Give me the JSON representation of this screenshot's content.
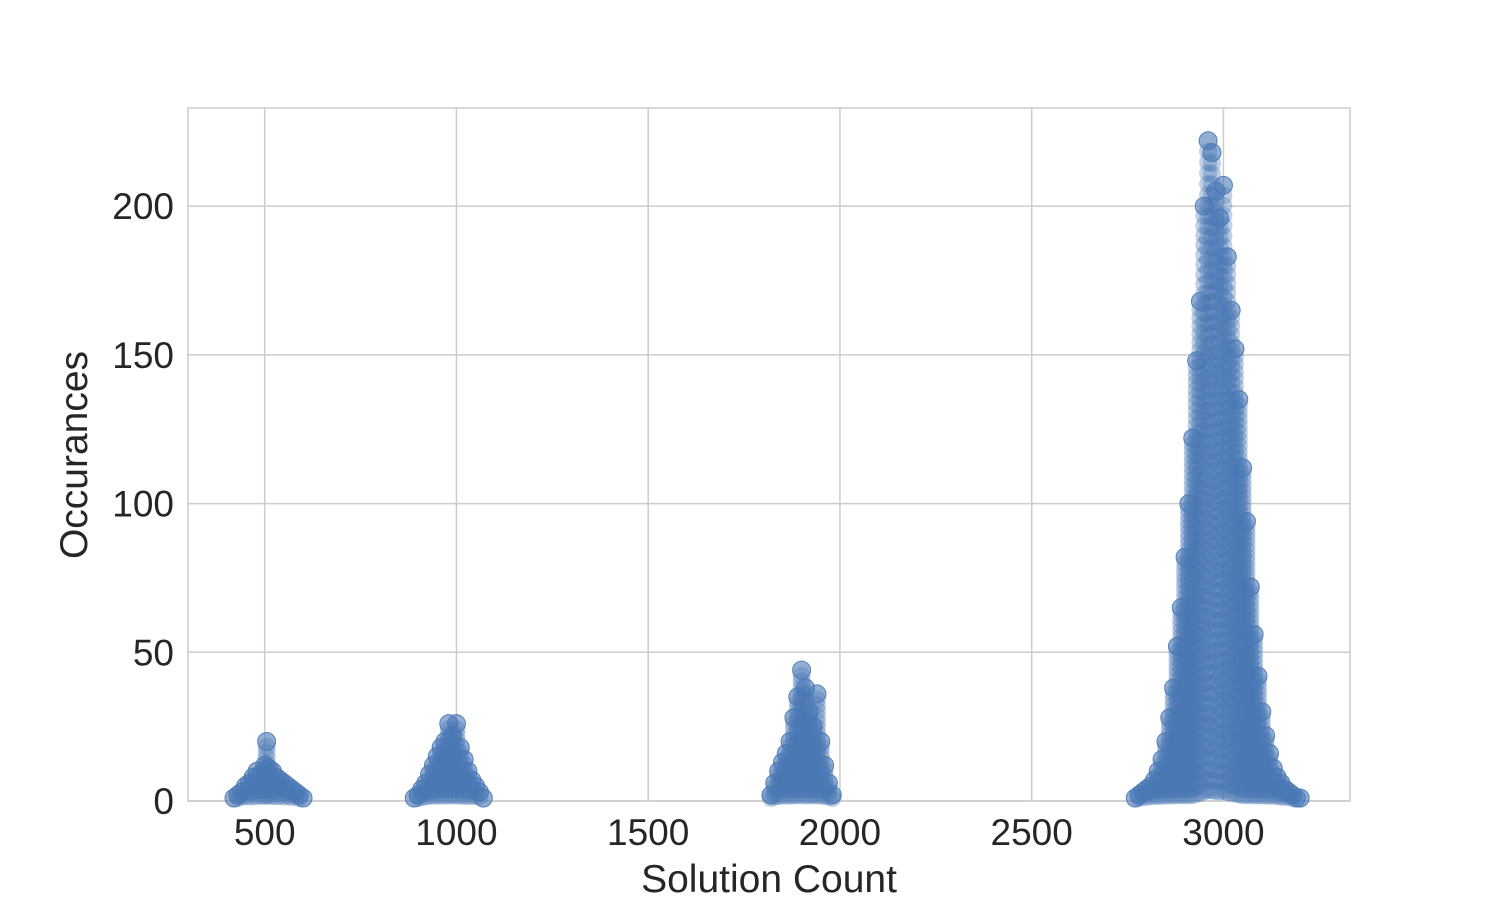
{
  "chart_data": {
    "type": "scatter",
    "title": "",
    "xlabel": "Solution Count",
    "ylabel": "Occurances",
    "xlim": [
      300,
      3330
    ],
    "ylim": [
      0,
      233
    ],
    "xticks": [
      500,
      1000,
      1500,
      2000,
      2500,
      3000
    ],
    "yticks": [
      0,
      50,
      100,
      150,
      200
    ],
    "grid": true,
    "marker_color": "#4a78b5",
    "marker_opacity": 0.6,
    "clusters": [
      {
        "x": [
          420,
          430,
          440,
          450,
          460,
          470,
          480,
          490,
          500,
          505,
          510,
          520,
          530,
          540,
          550,
          560,
          570,
          580,
          590,
          600
        ],
        "y": [
          1,
          2,
          3,
          5,
          6,
          8,
          10,
          9,
          12,
          20,
          11,
          10,
          8,
          7,
          6,
          5,
          4,
          3,
          2,
          1
        ]
      },
      {
        "x": [
          890,
          900,
          910,
          920,
          930,
          940,
          950,
          960,
          970,
          980,
          990,
          1000,
          1010,
          1020,
          1030,
          1040,
          1050,
          1060,
          1070
        ],
        "y": [
          1,
          2,
          4,
          6,
          9,
          12,
          15,
          18,
          20,
          26,
          22,
          26,
          18,
          14,
          10,
          7,
          5,
          3,
          1
        ]
      },
      {
        "x": [
          1820,
          1830,
          1840,
          1850,
          1860,
          1870,
          1880,
          1890,
          1900,
          1910,
          1920,
          1930,
          1940,
          1950,
          1960,
          1970,
          1980
        ],
        "y": [
          2,
          6,
          10,
          13,
          16,
          20,
          28,
          35,
          44,
          38,
          30,
          25,
          36,
          20,
          12,
          6,
          2
        ]
      },
      {
        "x": [
          2770,
          2780,
          2790,
          2800,
          2810,
          2820,
          2830,
          2840,
          2850,
          2860,
          2870,
          2880,
          2890,
          2900,
          2910,
          2920,
          2930,
          2940,
          2950,
          2960,
          2970,
          2980,
          2990,
          3000,
          3010,
          3020,
          3030,
          3040,
          3050,
          3060,
          3070,
          3080,
          3090,
          3100,
          3110,
          3120,
          3130,
          3140,
          3150,
          3160,
          3170,
          3180,
          3190,
          3200
        ],
        "y": [
          1,
          2,
          3,
          4,
          5,
          7,
          10,
          14,
          20,
          28,
          38,
          52,
          65,
          82,
          100,
          122,
          148,
          168,
          200,
          222,
          218,
          205,
          196,
          207,
          183,
          165,
          152,
          135,
          112,
          94,
          72,
          56,
          42,
          30,
          22,
          16,
          11,
          8,
          6,
          4,
          3,
          2,
          1,
          1
        ]
      }
    ]
  }
}
